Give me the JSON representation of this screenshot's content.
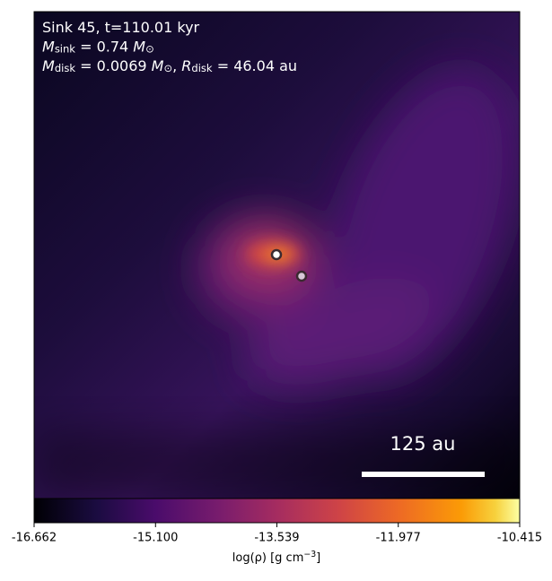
{
  "chart_data": {
    "type": "density-map",
    "colormap": "inferno",
    "annotations": [
      [
        {
          "text": "Sink 45, t=110.01 kyr"
        }
      ],
      [
        {
          "text": "M",
          "italic": true
        },
        {
          "text": "sink",
          "sub": true
        },
        {
          "text": " = 0.74 "
        },
        {
          "text": "M",
          "italic": true
        },
        {
          "text": "⊙",
          "sub": true
        }
      ],
      [
        {
          "text": "M",
          "italic": true
        },
        {
          "text": "disk",
          "sub": true
        },
        {
          "text": " = 0.0069 "
        },
        {
          "text": "M",
          "italic": true
        },
        {
          "text": "⊙",
          "sub": true
        },
        {
          "text": ", "
        },
        {
          "text": "R",
          "italic": true
        },
        {
          "text": "disk",
          "sub": true
        },
        {
          "text": " = 46.04 au"
        }
      ]
    ],
    "scale_bar_label": "125 au",
    "clim": [
      -16.662,
      -10.415
    ],
    "cticks": [
      -16.662,
      {
        "value": -15.1,
        "label": "-15.100"
      },
      -13.539,
      -11.977,
      -10.415
    ],
    "colorbar_label": [
      {
        "text": "log(ρ) [g cm"
      },
      {
        "text": "−3",
        "sup": true
      },
      {
        "text": "]"
      }
    ]
  }
}
